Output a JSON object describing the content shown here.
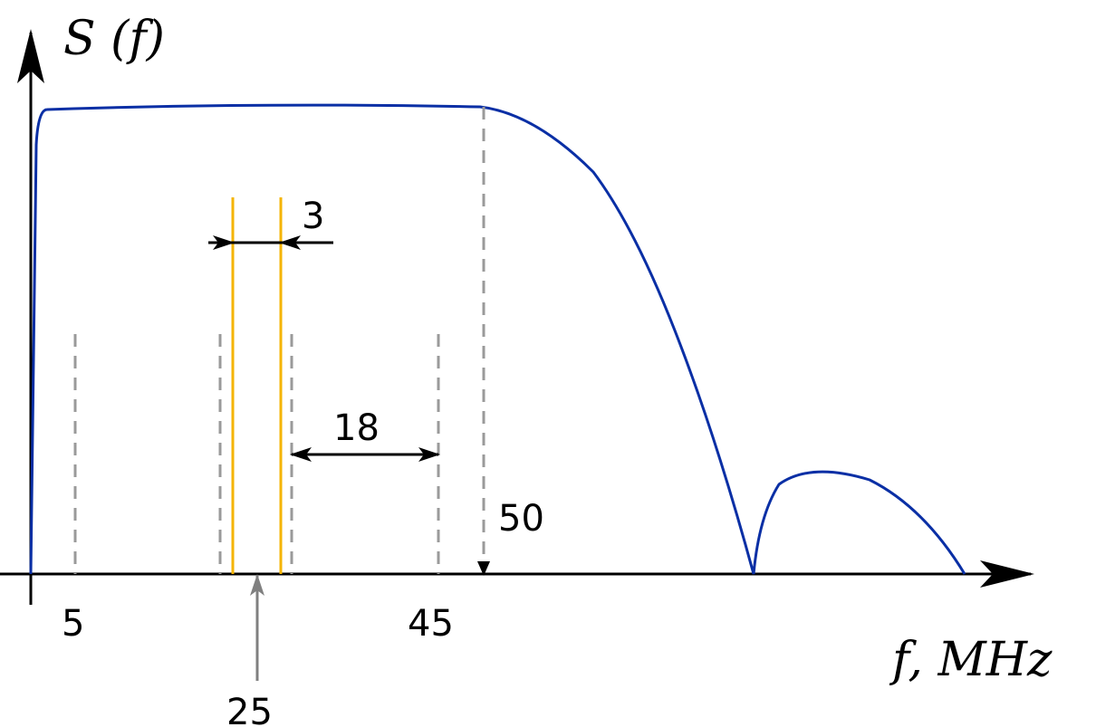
{
  "colors": {
    "spectrum": "#0a2fa5",
    "marker_lines": "#f5b400",
    "guide_lines": "#9a9a9a",
    "axis": "#000000"
  },
  "labels": {
    "y_axis": "S (f)",
    "x_axis": "f, MHz",
    "tick_5": "5",
    "tick_45": "45",
    "tick_25": "25",
    "marker_50": "50",
    "width_3": "3",
    "span_18": "18"
  }
}
